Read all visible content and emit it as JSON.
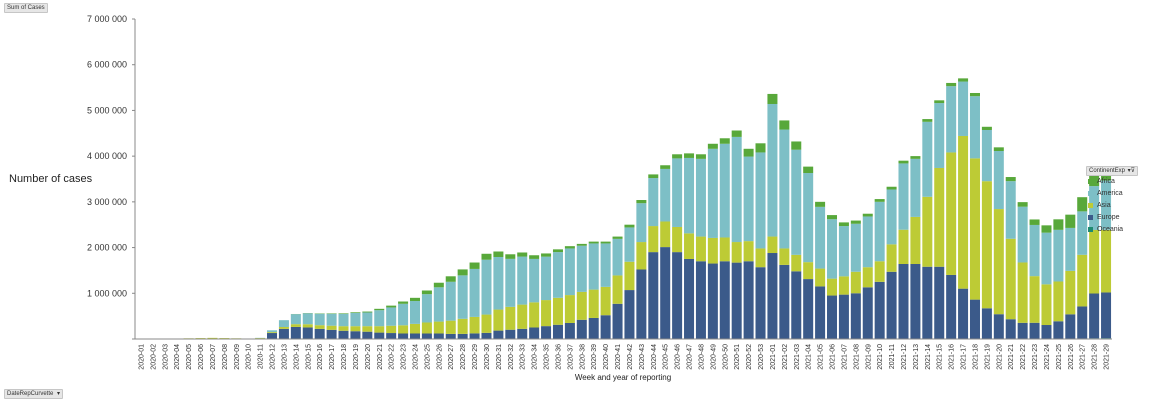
{
  "controls": {
    "value_button": "Sum of Cases",
    "column_button": "ContinentExp",
    "row_button": "DateRepCurvette"
  },
  "chart_data": {
    "type": "bar",
    "stacked": true,
    "xlabel": "Week and year of reporting",
    "ylabel": "Number of cases",
    "ylim": [
      0,
      7000000
    ],
    "yticks": [
      "7 000 000",
      "6 000 000",
      "5 000 000",
      "4 000 000",
      "3 000 000",
      "2 000 000",
      "1 000 000",
      ""
    ],
    "legend_position": "right",
    "categories": [
      "2020-01",
      "2020-02",
      "2020-03",
      "2020-04",
      "2020-05",
      "2020-06",
      "2020-07",
      "2020-08",
      "2020-09",
      "2020-10",
      "2020-11",
      "2020-12",
      "2020-13",
      "2020-14",
      "2020-15",
      "2020-16",
      "2020-17",
      "2020-18",
      "2020-19",
      "2020-20",
      "2020-21",
      "2020-22",
      "2020-23",
      "2020-24",
      "2020-25",
      "2020-26",
      "2020-27",
      "2020-28",
      "2020-29",
      "2020-30",
      "2020-31",
      "2020-32",
      "2020-33",
      "2020-34",
      "2020-35",
      "2020-36",
      "2020-37",
      "2020-38",
      "2020-39",
      "2020-40",
      "2020-41",
      "2020-42",
      "2020-43",
      "2020-44",
      "2020-45",
      "2020-46",
      "2020-47",
      "2020-48",
      "2020-49",
      "2020-50",
      "2020-51",
      "2020-52",
      "2020-53",
      "2021-01",
      "2021-02",
      "2021-03",
      "2021-04",
      "2021-05",
      "2021-06",
      "2021-07",
      "2021-08",
      "2021-09",
      "2021-10",
      "2021-11",
      "2021-12",
      "2021-13",
      "2021-14",
      "2021-15",
      "2021-16",
      "2021-17",
      "2021-18",
      "2021-19",
      "2021-20",
      "2021-21",
      "2021-22",
      "2021-23",
      "2021-24",
      "2021-25",
      "2021-26",
      "2021-27",
      "2021-28",
      "2021-29"
    ],
    "series": [
      {
        "name": "Oceania",
        "color": "#1f8a70",
        "values": [
          0,
          0,
          0,
          0,
          0,
          0,
          0,
          0,
          0,
          0,
          0,
          500,
          2000,
          4000,
          3000,
          2000,
          1000,
          500,
          300,
          200,
          200,
          200,
          300,
          500,
          800,
          1000,
          1500,
          2000,
          3000,
          4500,
          4000,
          3000,
          2500,
          2000,
          1500,
          1000,
          800,
          500,
          500,
          500,
          500,
          500,
          500,
          500,
          500,
          600,
          600,
          600,
          700,
          700,
          800,
          900,
          900,
          1000,
          1000,
          900,
          800,
          700,
          600,
          600,
          600,
          600,
          700,
          700,
          800,
          800,
          900,
          900,
          1000,
          1200,
          1500,
          2000,
          2500,
          3000,
          4000,
          5000,
          6000,
          8000,
          10000,
          12000,
          15000,
          18000
        ]
      },
      {
        "name": "Europe",
        "color": "#3b5a8a",
        "values": [
          0,
          0,
          0,
          0,
          0,
          0,
          0,
          0,
          0,
          0,
          10000,
          130000,
          220000,
          260000,
          250000,
          220000,
          200000,
          180000,
          170000,
          160000,
          140000,
          130000,
          120000,
          120000,
          120000,
          120000,
          110000,
          110000,
          120000,
          130000,
          180000,
          200000,
          220000,
          250000,
          280000,
          310000,
          350000,
          420000,
          460000,
          520000,
          770000,
          1070000,
          1520000,
          1900000,
          2010000,
          1900000,
          1750000,
          1700000,
          1650000,
          1700000,
          1670000,
          1700000,
          1570000,
          1880000,
          1620000,
          1480000,
          1310000,
          1150000,
          950000,
          970000,
          1000000,
          1130000,
          1250000,
          1470000,
          1640000,
          1640000,
          1580000,
          1580000,
          1400000,
          1100000,
          860000,
          670000,
          540000,
          430000,
          350000,
          350000,
          300000,
          380000,
          530000,
          700000,
          980000,
          1000000
        ]
      },
      {
        "name": "Asia",
        "color": "#bdcb35",
        "values": [
          0,
          0,
          5000,
          10000,
          15000,
          20000,
          25000,
          20000,
          15000,
          10000,
          10000,
          20000,
          40000,
          60000,
          70000,
          80000,
          90000,
          100000,
          110000,
          120000,
          140000,
          160000,
          180000,
          210000,
          240000,
          260000,
          290000,
          330000,
          360000,
          400000,
          460000,
          500000,
          530000,
          550000,
          570000,
          590000,
          610000,
          610000,
          620000,
          620000,
          620000,
          620000,
          600000,
          570000,
          560000,
          550000,
          560000,
          540000,
          560000,
          520000,
          450000,
          440000,
          410000,
          360000,
          360000,
          360000,
          370000,
          390000,
          370000,
          400000,
          470000,
          440000,
          450000,
          600000,
          750000,
          1030000,
          1530000,
          2160000,
          2680000,
          3340000,
          3090000,
          2780000,
          2300000,
          1760000,
          1320000,
          1020000,
          890000,
          870000,
          950000,
          1130000,
          1390000,
          1370000
        ]
      },
      {
        "name": "America",
        "color": "#7dbfc6",
        "values": [
          0,
          0,
          0,
          0,
          0,
          0,
          0,
          0,
          0,
          0,
          5000,
          40000,
          150000,
          220000,
          240000,
          250000,
          260000,
          270000,
          290000,
          300000,
          350000,
          400000,
          470000,
          500000,
          620000,
          750000,
          850000,
          950000,
          1050000,
          1200000,
          1150000,
          1050000,
          1050000,
          950000,
          950000,
          1000000,
          1020000,
          1010000,
          1010000,
          950000,
          800000,
          750000,
          850000,
          1050000,
          1150000,
          1500000,
          1650000,
          1700000,
          1950000,
          2050000,
          2300000,
          1850000,
          2100000,
          2900000,
          2600000,
          2300000,
          1950000,
          1350000,
          1300000,
          1100000,
          1050000,
          1110000,
          1300000,
          1200000,
          1450000,
          1270000,
          1640000,
          1420000,
          1450000,
          1190000,
          1360000,
          1120000,
          1270000,
          1260000,
          1220000,
          1120000,
          1130000,
          1130000,
          940000,
          950000,
          960000,
          1080000
        ]
      },
      {
        "name": "Africa",
        "color": "#58a83a",
        "values": [
          0,
          0,
          0,
          0,
          0,
          0,
          0,
          0,
          0,
          0,
          0,
          0,
          0,
          3000,
          5000,
          8000,
          10000,
          12000,
          15000,
          20000,
          30000,
          40000,
          50000,
          70000,
          80000,
          100000,
          120000,
          130000,
          140000,
          130000,
          120000,
          100000,
          90000,
          80000,
          70000,
          60000,
          50000,
          40000,
          40000,
          40000,
          50000,
          60000,
          70000,
          80000,
          80000,
          90000,
          100000,
          100000,
          110000,
          120000,
          140000,
          170000,
          200000,
          220000,
          200000,
          180000,
          140000,
          110000,
          90000,
          80000,
          70000,
          60000,
          60000,
          60000,
          60000,
          60000,
          60000,
          60000,
          70000,
          70000,
          70000,
          70000,
          80000,
          90000,
          100000,
          120000,
          160000,
          230000,
          290000,
          310000,
          270000,
          250000
        ]
      }
    ]
  }
}
